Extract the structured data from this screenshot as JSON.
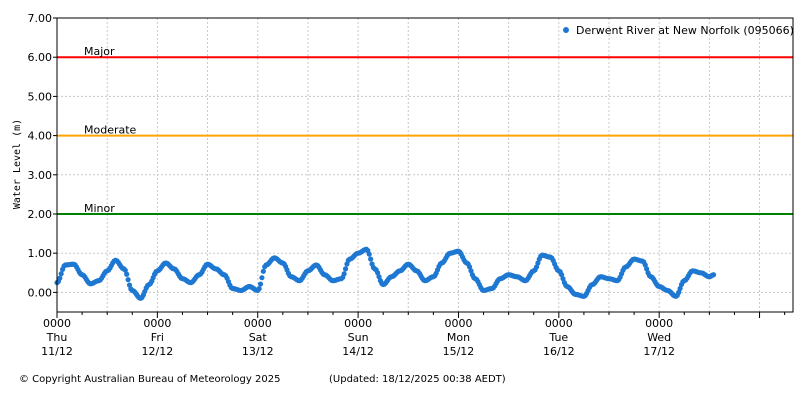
{
  "chart_data": {
    "type": "scatter",
    "ylabel": "Water Level (m)",
    "xlabel": "",
    "ylim": [
      -0.5,
      7.0
    ],
    "xlim_hours": [
      0,
      176
    ],
    "yticks": [
      0,
      1,
      2,
      3,
      4,
      5,
      6,
      7
    ],
    "ytick_labels": [
      "0.00",
      "1.00",
      "2.00",
      "3.00",
      "4.00",
      "5.00",
      "6.00",
      "7.00"
    ],
    "grid": true,
    "legend_position": "top-right",
    "x_ticks": [
      {
        "hour": 0,
        "time": "0000",
        "day": "Thu",
        "date": "11/12"
      },
      {
        "hour": 24,
        "time": "0000",
        "day": "Fri",
        "date": "12/12"
      },
      {
        "hour": 48,
        "time": "0000",
        "day": "Sat",
        "date": "13/12"
      },
      {
        "hour": 72,
        "time": "0000",
        "day": "Sun",
        "date": "14/12"
      },
      {
        "hour": 96,
        "time": "0000",
        "day": "Mon",
        "date": "15/12"
      },
      {
        "hour": 120,
        "time": "0000",
        "day": "Tue",
        "date": "16/12"
      },
      {
        "hour": 144,
        "time": "0000",
        "day": "Wed",
        "date": "17/12"
      }
    ],
    "thresholds": [
      {
        "name": "Major",
        "value": 6.0,
        "color": "#ff0000"
      },
      {
        "name": "Moderate",
        "value": 4.0,
        "color": "#ffa500"
      },
      {
        "name": "Minor",
        "value": 2.0,
        "color": "#008000"
      }
    ],
    "series": [
      {
        "name": "Derwent River at New Norfolk (095066)",
        "color": "#1e78d2",
        "points": [
          [
            0,
            0.25
          ],
          [
            2,
            0.7
          ],
          [
            4,
            0.72
          ],
          [
            6,
            0.45
          ],
          [
            8,
            0.22
          ],
          [
            10,
            0.3
          ],
          [
            12,
            0.55
          ],
          [
            14,
            0.82
          ],
          [
            16,
            0.6
          ],
          [
            18,
            0.05
          ],
          [
            20,
            -0.15
          ],
          [
            22,
            0.2
          ],
          [
            24,
            0.55
          ],
          [
            26,
            0.75
          ],
          [
            28,
            0.6
          ],
          [
            30,
            0.35
          ],
          [
            32,
            0.25
          ],
          [
            34,
            0.45
          ],
          [
            36,
            0.72
          ],
          [
            38,
            0.6
          ],
          [
            40,
            0.45
          ],
          [
            42,
            0.1
          ],
          [
            44,
            0.05
          ],
          [
            46,
            0.15
          ],
          [
            48,
            0.05
          ],
          [
            50,
            0.7
          ],
          [
            52,
            0.88
          ],
          [
            54,
            0.75
          ],
          [
            56,
            0.4
          ],
          [
            58,
            0.3
          ],
          [
            60,
            0.55
          ],
          [
            62,
            0.7
          ],
          [
            64,
            0.45
          ],
          [
            66,
            0.3
          ],
          [
            68,
            0.35
          ],
          [
            70,
            0.85
          ],
          [
            72,
            1.0
          ],
          [
            74,
            1.1
          ],
          [
            76,
            0.6
          ],
          [
            78,
            0.2
          ],
          [
            80,
            0.4
          ],
          [
            82,
            0.55
          ],
          [
            84,
            0.72
          ],
          [
            86,
            0.55
          ],
          [
            88,
            0.3
          ],
          [
            90,
            0.4
          ],
          [
            92,
            0.75
          ],
          [
            94,
            1.0
          ],
          [
            96,
            1.05
          ],
          [
            98,
            0.75
          ],
          [
            100,
            0.35
          ],
          [
            102,
            0.05
          ],
          [
            104,
            0.1
          ],
          [
            106,
            0.35
          ],
          [
            108,
            0.45
          ],
          [
            110,
            0.4
          ],
          [
            112,
            0.3
          ],
          [
            114,
            0.55
          ],
          [
            116,
            0.95
          ],
          [
            118,
            0.9
          ],
          [
            120,
            0.55
          ],
          [
            122,
            0.15
          ],
          [
            124,
            -0.05
          ],
          [
            126,
            -0.1
          ],
          [
            128,
            0.2
          ],
          [
            130,
            0.4
          ],
          [
            132,
            0.35
          ],
          [
            134,
            0.3
          ],
          [
            136,
            0.65
          ],
          [
            138,
            0.85
          ],
          [
            140,
            0.8
          ],
          [
            142,
            0.4
          ],
          [
            144,
            0.15
          ],
          [
            146,
            0.05
          ],
          [
            148,
            -0.1
          ],
          [
            150,
            0.3
          ],
          [
            152,
            0.55
          ],
          [
            154,
            0.5
          ],
          [
            156,
            0.4
          ],
          [
            157,
            0.45
          ]
        ]
      }
    ]
  },
  "footer": {
    "copyright": "© Copyright Australian Bureau of Meteorology 2025",
    "updated": "(Updated: 18/12/2025 00:38 AEDT)"
  }
}
